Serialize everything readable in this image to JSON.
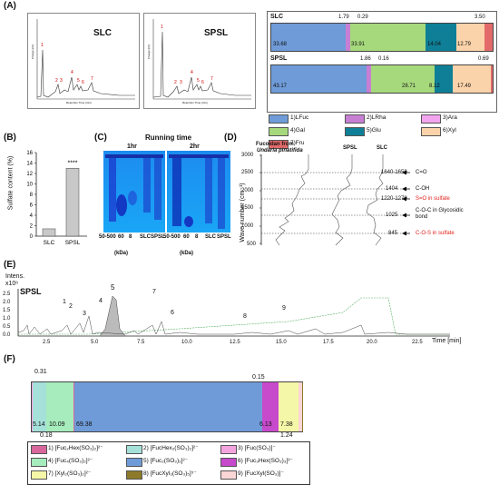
{
  "panels": {
    "A": {
      "label": "(A)",
      "chromatograms": [
        {
          "name": "SLC",
          "axis_y": "Charge [nC]",
          "axis_x": "Retention Time [min]",
          "peaks": [
            "1",
            "2",
            "3",
            "4",
            "5",
            "6",
            "7"
          ]
        },
        {
          "name": "SPSL",
          "axis_y": "Charge [nC]",
          "axis_x": "Retention Time [min]",
          "peaks": [
            "1",
            "2",
            "3",
            "4",
            "5",
            "6",
            "7"
          ]
        }
      ],
      "composition": {
        "type": "stacked-bar",
        "bars": [
          {
            "name": "SLC",
            "values": [
              33.68,
              1.79,
              0.29,
              33.91,
              14.04,
              12.79,
              3.5
            ],
            "labels_inside": [
              "33.68",
              "33.91",
              "14.04",
              "12.79"
            ],
            "labels_above": [
              "1.79",
              "0.29",
              "3.50"
            ]
          },
          {
            "name": "SPSL",
            "values": [
              43.17,
              1.86,
              0.16,
              28.71,
              8.12,
              17.49,
              0.69
            ],
            "labels_inside": [
              "43.17",
              "28.71",
              "8.12",
              "17.49"
            ],
            "labels_above": [
              "1.86",
              "0.16",
              "0.69"
            ]
          }
        ],
        "legend": [
          {
            "label": "1)LFuc",
            "color": "#6f9bd8"
          },
          {
            "label": "2)LRha",
            "color": "#c77fd3"
          },
          {
            "label": "3)Ara",
            "color": "#f2a5ee"
          },
          {
            "label": "4)Gal",
            "color": "#a6d97c"
          },
          {
            "label": "5)Glu",
            "color": "#0e7f96"
          },
          {
            "label": "6)Xyl",
            "color": "#fbd3aa"
          },
          {
            "label": "7)Fru",
            "color": "#e36a6a"
          }
        ]
      }
    },
    "B": {
      "label": "(B)",
      "chart_data": {
        "type": "bar",
        "categories": [
          "SLC",
          "SPSL"
        ],
        "values": [
          1.4,
          13.0
        ],
        "ylabel": "Sulfate content  (%)",
        "ylim": [
          0,
          16
        ],
        "yticks": [
          "0",
          "2",
          "4",
          "6",
          "8",
          "10",
          "12",
          "14",
          "16"
        ],
        "significance": "****"
      }
    },
    "C": {
      "label": "(C)",
      "title": "Running time",
      "gels": [
        {
          "time": "1hr",
          "lanes": [
            "50-500",
            "60",
            "8",
            "SLC",
            "SPSL"
          ],
          "unit": "(kDa)"
        },
        {
          "time": "2hr",
          "lanes": [
            "50-500",
            "60",
            "8",
            "SLC",
            "SPSL"
          ],
          "unit": "(kDa)"
        }
      ]
    },
    "D": {
      "label": "(D)",
      "ylabel": "Wave number (cm⁻¹)",
      "yticks": [
        "3000",
        "2500",
        "2000",
        "1500",
        "1000",
        "500"
      ],
      "spectra": [
        "Fucoidan from",
        "Undaria pinatifida",
        "SPSL",
        "SLC"
      ],
      "annotations": [
        {
          "wn": "1640-1650",
          "label": "C=O",
          "color": "#000"
        },
        {
          "wn": "1404",
          "label": "C-OH",
          "color": "#000"
        },
        {
          "wn": "1220-1270",
          "label": "S=O in sulfate",
          "color": "#e0201b"
        },
        {
          "wn": "1025",
          "label": "C-O-C in Glycosidic bond",
          "color": "#000"
        },
        {
          "wn": "845",
          "label": "C-O-S in sulfate",
          "color": "#e0201b"
        }
      ]
    },
    "E": {
      "label": "(E)",
      "title": "SPSL",
      "y_axis": "Intens.",
      "y_exp": "x10⁶",
      "yticks": [
        "0.0",
        "0.5",
        "1.0",
        "1.5",
        "2.0",
        "2.5"
      ],
      "xticks": [
        "2.5",
        "5.0",
        "7.5",
        "10.0",
        "12.5",
        "15.0",
        "17.5",
        "20.0",
        "22.5"
      ],
      "x_axis": "Time [min]",
      "peaks": [
        "1",
        "2",
        "3",
        "4",
        "5",
        "6",
        "7",
        "8",
        "9"
      ]
    },
    "F": {
      "label": "(F)",
      "bar": {
        "values": [
          0.31,
          5.14,
          10.09,
          69.38,
          6.13,
          7.38,
          1.24,
          0.15,
          0.18
        ],
        "labels_inside": [
          "5.14",
          "10.09",
          "69.38",
          "6.13",
          "7.38"
        ],
        "labels_outside": [
          "0.31",
          "0.18",
          "1.24",
          "0.15"
        ]
      },
      "legend": [
        {
          "label": "1) [Fuc₂Hex(SO₃)₂]²⁻",
          "color": "#d9679d"
        },
        {
          "label": "2) [FucHex₂(SO₃)₂]²⁻",
          "color": "#a5e0d9"
        },
        {
          "label": "3) [Fuc(SO₃)]⁻",
          "color": "#f3a3de"
        },
        {
          "label": "4) [Fuc₄(SO₃)₂]²⁻",
          "color": "#a6ecbd"
        },
        {
          "label": "5) [Fuc₂(SO₃)₂]²⁻",
          "color": "#6f9bd8"
        },
        {
          "label": "6) [Fuc₃Hex(SO₃)₃]³⁻",
          "color": "#c64acb"
        },
        {
          "label": "7) [Xyl₂(SO₃)₂]²⁻",
          "color": "#f5f7a8"
        },
        {
          "label": "8) [FucXyl₃(SO₃)₅]⁵⁻",
          "color": "#8c7a2a"
        },
        {
          "label": "9) [FucXyl(SO₃)]⁻",
          "color": "#fbd6d6"
        }
      ]
    }
  }
}
